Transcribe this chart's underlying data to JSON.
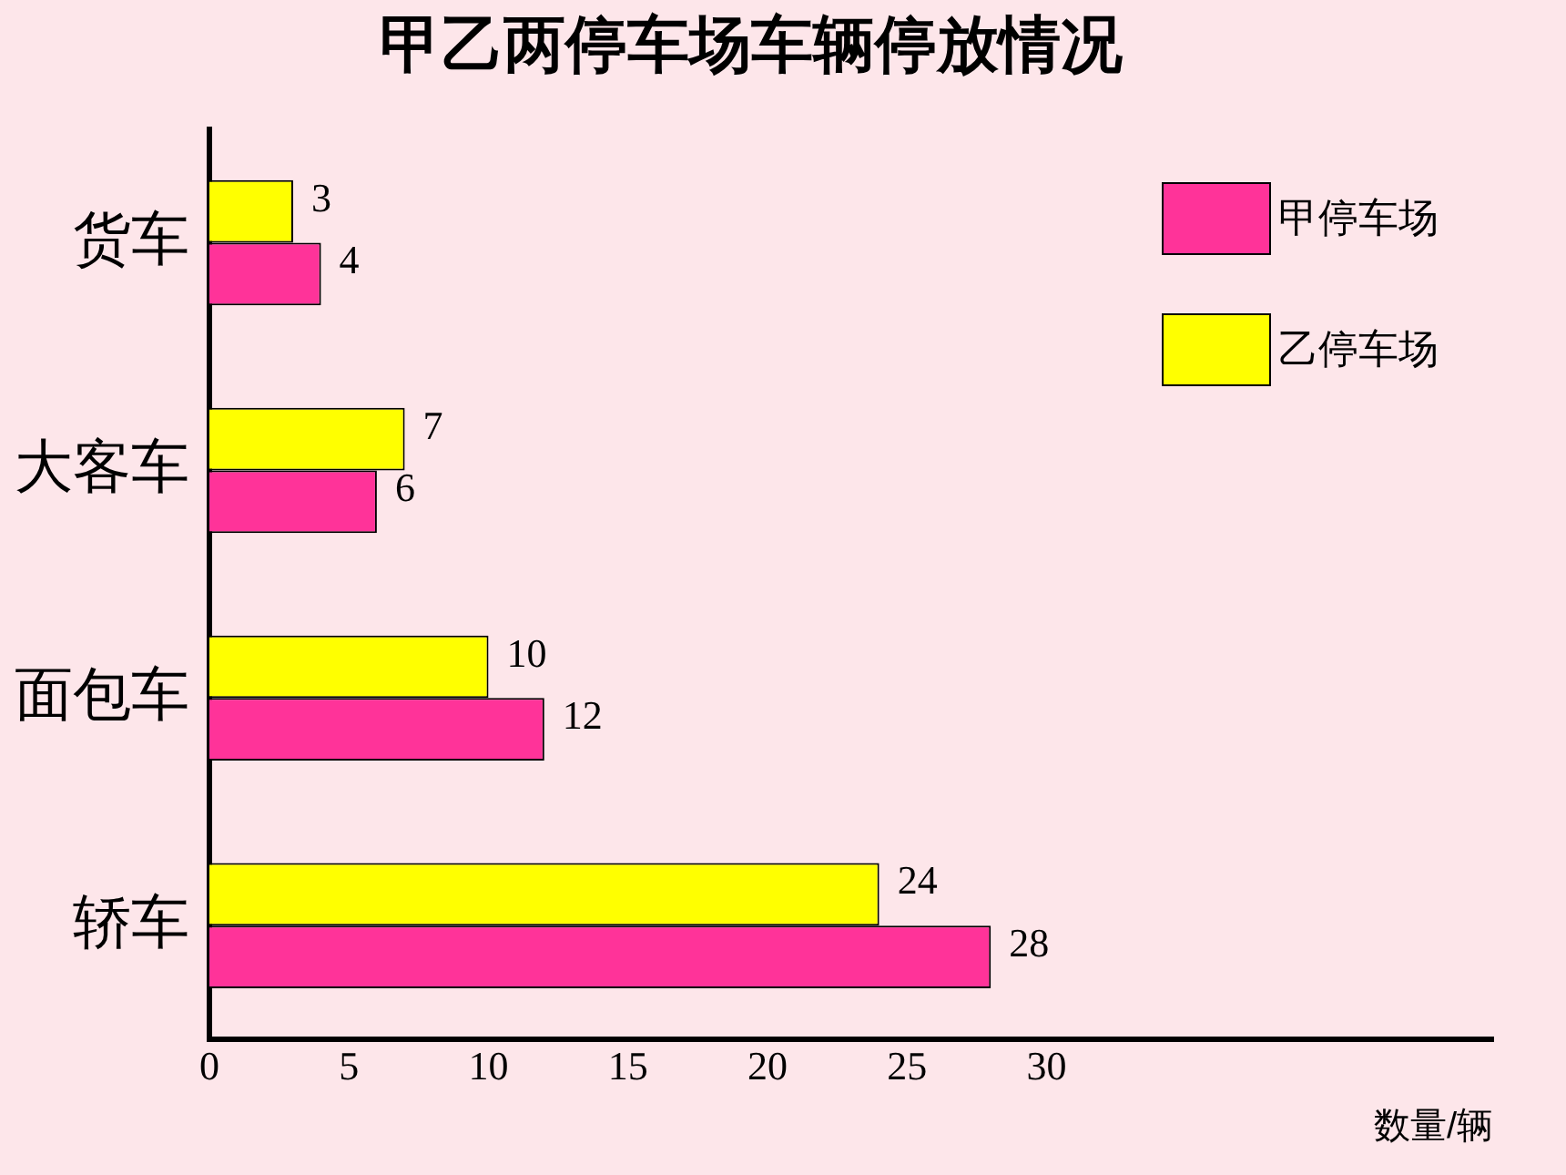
{
  "chart_data": {
    "type": "bar",
    "orientation": "horizontal",
    "title": "甲乙两停车场车辆停放情况",
    "xlabel": "数量/辆",
    "categories": [
      "货车",
      "大客车",
      "面包车",
      "轿车"
    ],
    "series": [
      {
        "name": "甲停车场",
        "color": "#ff3399",
        "values": [
          4,
          6,
          12,
          28
        ]
      },
      {
        "name": "乙停车场",
        "color": "#ffff00",
        "values": [
          3,
          7,
          10,
          24
        ]
      }
    ],
    "xlim": [
      0,
      46
    ],
    "xticks": [
      0,
      5,
      10,
      15,
      20,
      25,
      30
    ],
    "grid": false,
    "legend": "top right",
    "data_labels": true
  }
}
